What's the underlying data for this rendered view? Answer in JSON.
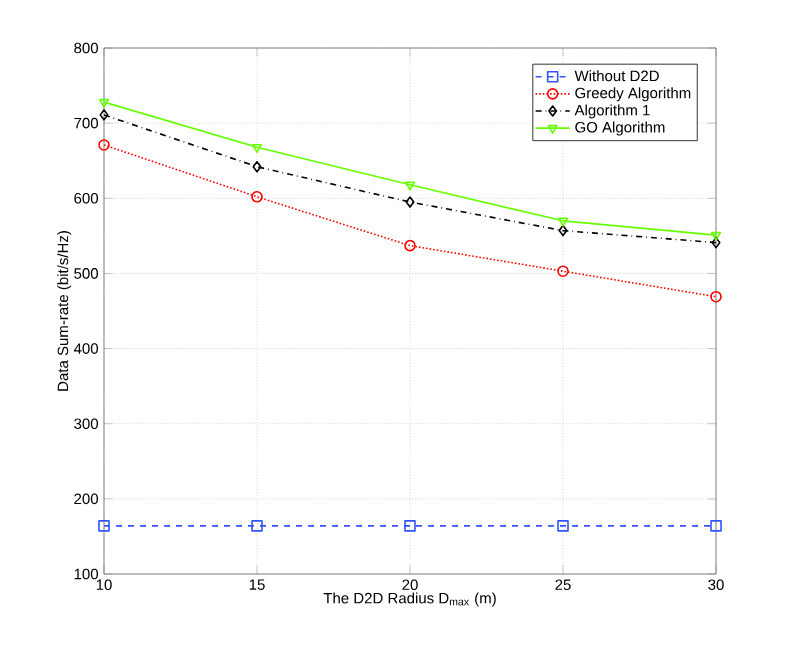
{
  "chart_data": {
    "type": "line",
    "xlabel": "The D2D Radius D$_{max}$ (m)",
    "ylabel": "Data Sum-rate (bit/s/Hz)",
    "x": [
      10,
      15,
      20,
      25,
      30
    ],
    "xlim": [
      10,
      30
    ],
    "xticks": [
      10,
      15,
      20,
      25,
      30
    ],
    "ylim": [
      100,
      800
    ],
    "yticks": [
      100,
      200,
      300,
      400,
      500,
      600,
      700,
      800
    ],
    "grid": true,
    "legend": "top right",
    "series": [
      {
        "name": "Without D2D",
        "color": "#3355ff",
        "values": [
          164,
          164,
          164,
          164,
          164
        ],
        "marker": "square",
        "line_style": "dashed"
      },
      {
        "name": "Greedy Algorithm",
        "color": "#ff0000",
        "values": [
          671,
          602,
          537,
          503,
          469
        ],
        "marker": "circle",
        "line_style": "dotted"
      },
      {
        "name": "Algorithm 1",
        "color": "#000000",
        "values": [
          711,
          642,
          595,
          557,
          541
        ],
        "marker": "diamond",
        "line_style": "dashdotted"
      },
      {
        "name": "GO Algorithm",
        "color": "#66ff00",
        "values": [
          728,
          668,
          618,
          570,
          551
        ],
        "marker": "triangle down",
        "line_style": "solid"
      }
    ]
  }
}
